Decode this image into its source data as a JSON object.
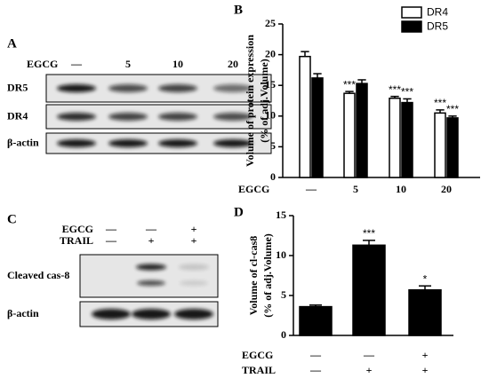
{
  "panels": {
    "A": {
      "letter": "A",
      "treatment": {
        "name": "EGCG",
        "labels": [
          "—",
          "5",
          "10",
          "20"
        ]
      },
      "blots": [
        "DR5",
        "DR4",
        "β-actin"
      ]
    },
    "C": {
      "letter": "C",
      "treatments": [
        {
          "name": "EGCG",
          "labels": [
            "—",
            "—",
            "+"
          ]
        },
        {
          "name": "TRAIL",
          "labels": [
            "—",
            "+",
            "+"
          ]
        }
      ],
      "blots": [
        "Cleaved cas-8",
        "β-actin"
      ]
    }
  },
  "chart_data": [
    {
      "type": "bar",
      "letter": "B",
      "y_label": [
        "Volume of protein expression",
        "(% of adj.Volume)"
      ],
      "x_label": "EGCG",
      "categories": [
        "—",
        "5",
        "10",
        "20"
      ],
      "series": [
        {
          "name": "DR4",
          "color": "#ffffff",
          "values": [
            19.7,
            13.7,
            12.9,
            10.5
          ],
          "errors": [
            0.8,
            0.3,
            0.3,
            0.5
          ],
          "significance": [
            null,
            "***",
            "***",
            "***"
          ]
        },
        {
          "name": "DR5",
          "color": "#000000",
          "values": [
            16.2,
            15.3,
            12.2,
            9.7
          ],
          "errors": [
            0.7,
            0.6,
            0.6,
            0.3
          ],
          "significance": [
            null,
            null,
            "***",
            "***"
          ]
        }
      ],
      "ylim": [
        0,
        25
      ],
      "yticks": [
        0,
        5,
        10,
        15,
        20,
        25
      ],
      "legend": "top-right"
    },
    {
      "type": "bar",
      "letter": "D",
      "y_label": [
        "Volume of cl-cas8",
        "(% of adj.Volume)"
      ],
      "rows": [
        {
          "name": "EGCG",
          "labels": [
            "—",
            "—",
            "+"
          ]
        },
        {
          "name": "TRAIL",
          "labels": [
            "—",
            "+",
            "+"
          ]
        }
      ],
      "series": [
        {
          "color": "#000000",
          "values": [
            3.6,
            11.3,
            5.7
          ],
          "errors": [
            0.2,
            0.6,
            0.5
          ],
          "significance": [
            null,
            "***",
            "*"
          ]
        }
      ],
      "ylim": [
        0,
        15
      ],
      "yticks": [
        0,
        5,
        10,
        15
      ]
    }
  ]
}
